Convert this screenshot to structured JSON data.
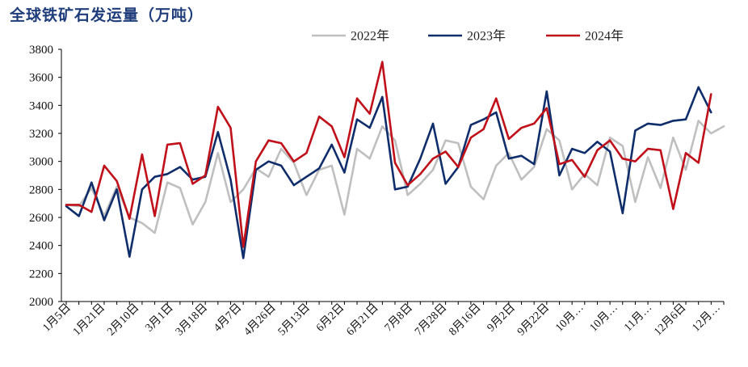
{
  "title": "全球铁矿石发运量（万吨）",
  "chart_data": {
    "type": "line",
    "title": "全球铁矿石发运量（万吨）",
    "xlabel": "",
    "ylabel": "",
    "ylim": [
      2000,
      3800
    ],
    "ytick_step": 200,
    "grid": false,
    "legend_position": "top-center",
    "x_tick_labels": [
      "1月5日",
      "1月21日",
      "2月10日",
      "3月1日",
      "3月18日",
      "4月7日",
      "4月26日",
      "5月13日",
      "6月2日",
      "6月21日",
      "7月8日",
      "7月28日",
      "8月16日",
      "9月2日",
      "9月22日",
      "10月…",
      "10月…",
      "11月…",
      "12月6日",
      "12月…"
    ],
    "series": [
      {
        "name": "2022年",
        "color": "#bfbfbf",
        "values": [
          2690,
          2680,
          2810,
          2610,
          2820,
          2600,
          2560,
          2490,
          2850,
          2810,
          2550,
          2710,
          3060,
          2710,
          2800,
          2950,
          2890,
          3090,
          2990,
          2760,
          2940,
          2970,
          2620,
          3090,
          3020,
          3250,
          3150,
          2760,
          2840,
          2940,
          3150,
          3130,
          2820,
          2730,
          2970,
          3060,
          2870,
          2960,
          3230,
          3150,
          2800,
          2910,
          2830,
          3170,
          3110,
          2710,
          3030,
          2810,
          3170,
          2940,
          3290,
          3200,
          3250
        ]
      },
      {
        "name": "2023年",
        "color": "#0f2d6b",
        "values": [
          2680,
          2610,
          2850,
          2580,
          2800,
          2320,
          2800,
          2890,
          2910,
          2960,
          2870,
          2890,
          3210,
          2870,
          2310,
          2940,
          3000,
          2970,
          2830,
          2890,
          2950,
          3120,
          2920,
          3300,
          3240,
          3460,
          2800,
          2820,
          3020,
          3270,
          2840,
          2960,
          3260,
          3300,
          3350,
          3020,
          3040,
          2980,
          3500,
          2900,
          3090,
          3060,
          3140,
          3070,
          2630,
          3220,
          3270,
          3260,
          3290,
          3300,
          3530,
          3350
        ]
      },
      {
        "name": "2024年",
        "color": "#c0101a",
        "values": [
          2690,
          2690,
          2640,
          2970,
          2860,
          2590,
          3050,
          2610,
          3120,
          3130,
          2840,
          2900,
          3390,
          3240,
          2390,
          3000,
          3150,
          3130,
          3000,
          3060,
          3320,
          3250,
          3030,
          3450,
          3340,
          3710,
          2990,
          2830,
          2910,
          3020,
          3070,
          2960,
          3170,
          3230,
          3450,
          3160,
          3240,
          3270,
          3380,
          2980,
          3010,
          2890,
          3080,
          3150,
          3020,
          3000,
          3090,
          3080,
          2660,
          3060,
          2990,
          3480
        ]
      }
    ]
  }
}
